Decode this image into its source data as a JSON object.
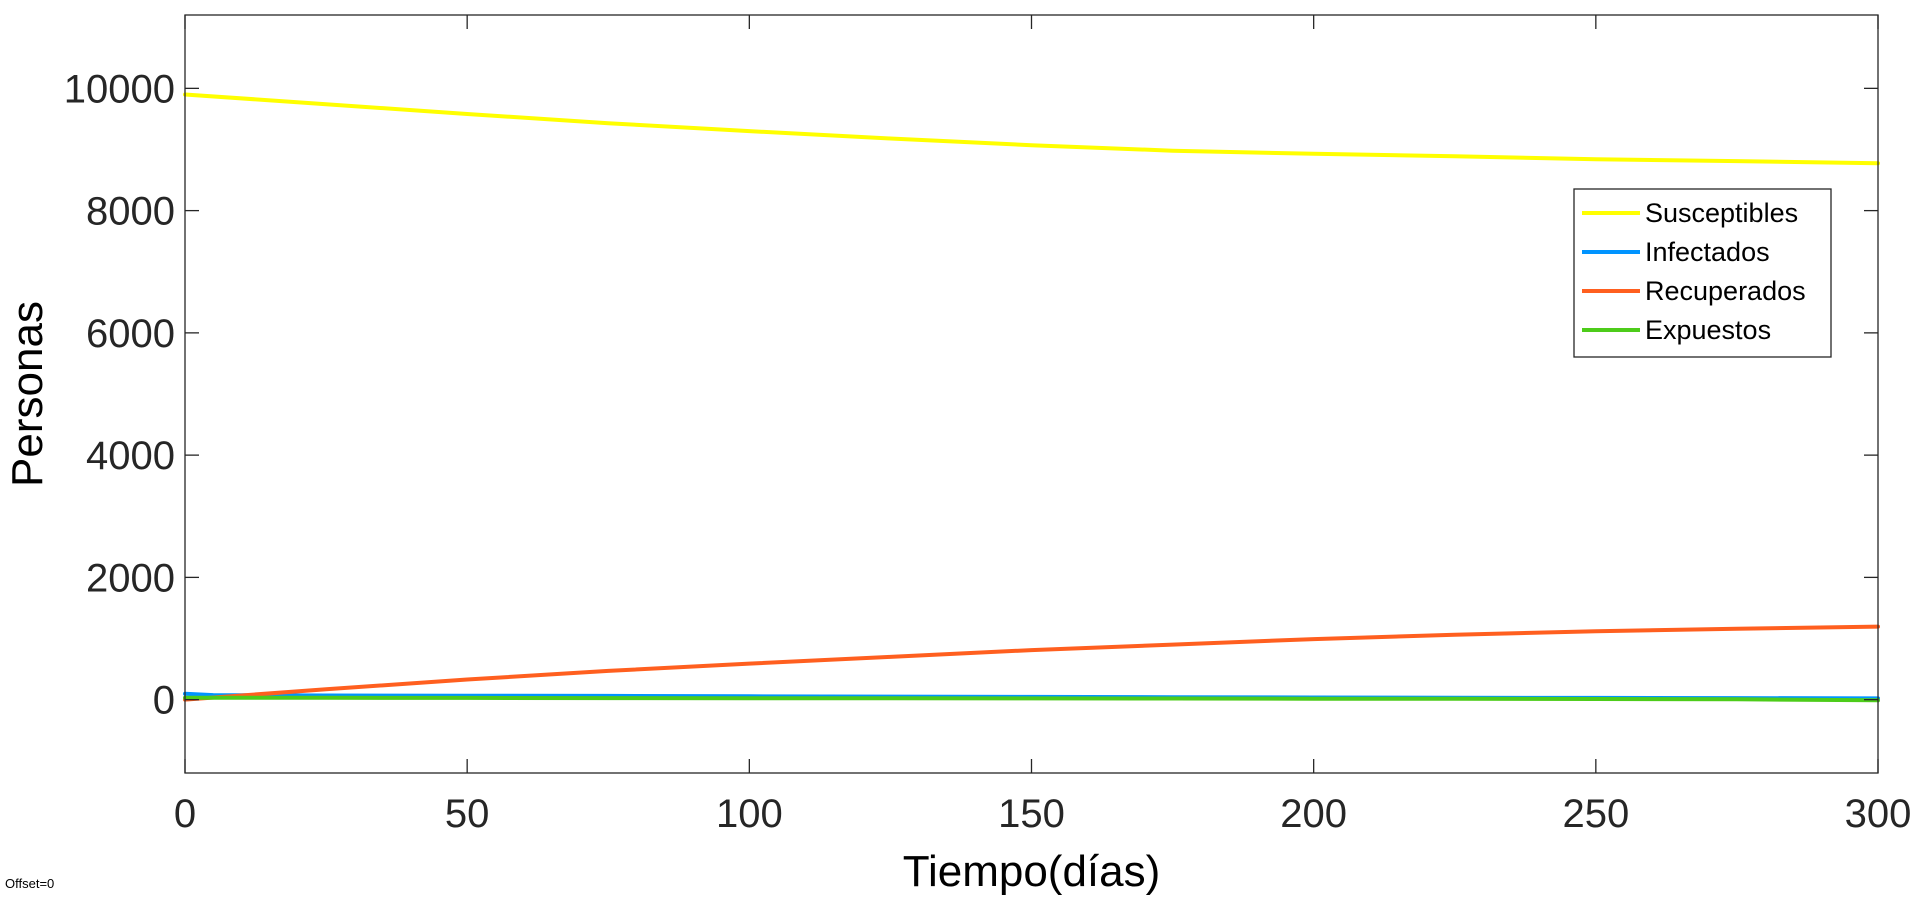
{
  "chart_data": {
    "type": "line",
    "title": "",
    "xlabel": "Tiempo(días)",
    "ylabel": "Personas",
    "xlim": [
      0,
      300
    ],
    "ylim": [
      -1200,
      11200
    ],
    "xticks": [
      0,
      50,
      100,
      150,
      200,
      250,
      300
    ],
    "yticks": [
      0,
      2000,
      4000,
      6000,
      8000,
      10000
    ],
    "grid": false,
    "legend_position": "top-right",
    "annotation": "Offset=0",
    "series": [
      {
        "name": "Susceptibles",
        "color": "#ffff00",
        "x": [
          0,
          25,
          50,
          75,
          100,
          125,
          150,
          175,
          200,
          225,
          250,
          275,
          300
        ],
        "y": [
          9900,
          9740,
          9580,
          9430,
          9300,
          9180,
          9070,
          8980,
          8930,
          8890,
          8840,
          8810,
          8775
        ]
      },
      {
        "name": "Infectados",
        "color": "#0094ff",
        "x": [
          0,
          5,
          25,
          50,
          75,
          100,
          125,
          150,
          175,
          200,
          225,
          250,
          275,
          300
        ],
        "y": [
          95,
          75,
          68,
          65,
          62,
          55,
          50,
          45,
          40,
          35,
          30,
          28,
          25,
          20
        ]
      },
      {
        "name": "Recuperados",
        "color": "#ff5f1f",
        "x": [
          0,
          25,
          50,
          75,
          100,
          125,
          150,
          175,
          200,
          225,
          250,
          275,
          300
        ],
        "y": [
          0,
          170,
          330,
          470,
          590,
          700,
          810,
          900,
          990,
          1060,
          1120,
          1160,
          1195
        ]
      },
      {
        "name": "Expuestos",
        "color": "#4dcc1a",
        "x": [
          0,
          25,
          50,
          75,
          100,
          125,
          150,
          175,
          200,
          225,
          250,
          275,
          300
        ],
        "y": [
          30,
          30,
          28,
          26,
          24,
          22,
          20,
          18,
          16,
          14,
          10,
          5,
          -10
        ]
      }
    ]
  }
}
